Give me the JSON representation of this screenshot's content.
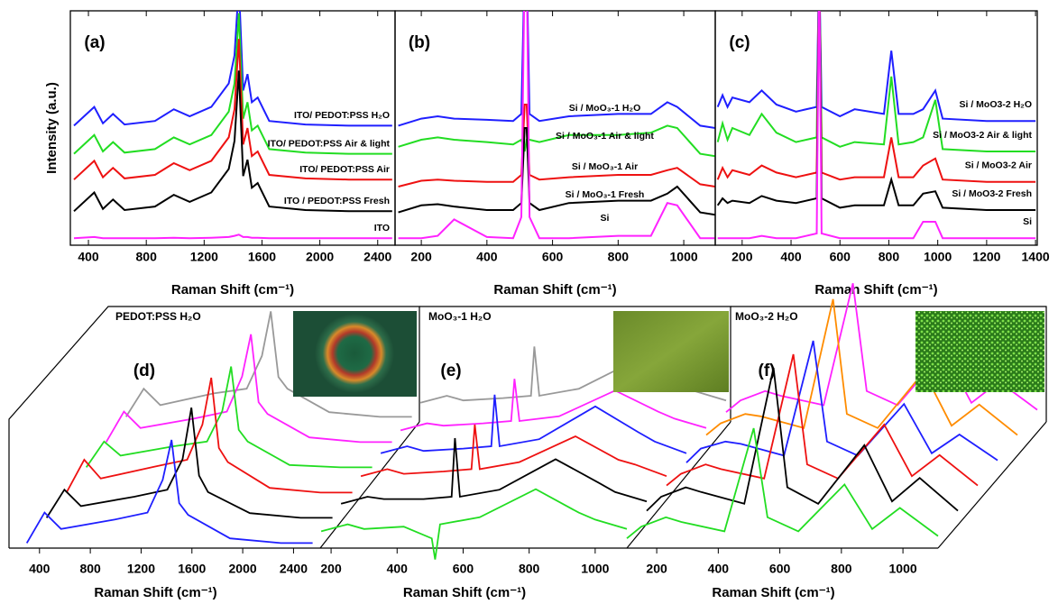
{
  "chart_data": [
    {
      "type": "line",
      "panel_label": "(a)",
      "xlabel": "Raman Shift (cm⁻¹)",
      "ylabel": "Intensity (a.u.)",
      "xlim": [
        275,
        2520
      ],
      "xticks": [
        400,
        800,
        1200,
        1600,
        2000,
        2400
      ],
      "ylim": [
        0,
        10
      ],
      "x": [
        300,
        440,
        500,
        570,
        650,
        860,
        990,
        1100,
        1250,
        1370,
        1410,
        1440,
        1470,
        1500,
        1530,
        1570,
        1650,
        1900,
        2200,
        2500
      ],
      "series": [
        {
          "name": "ITO/ PEDOT:PSS H₂O",
          "color": "#1f1fff",
          "values": [
            5.1,
            5.9,
            5.2,
            5.6,
            5.15,
            5.3,
            5.8,
            5.5,
            5.9,
            6.9,
            8.1,
            11.1,
            6.6,
            7.3,
            6.1,
            6.3,
            5.3,
            5.15,
            5.1,
            5.1
          ]
        },
        {
          "name": "ITO/ PEDOT:PSS Air & light",
          "color": "#22dd22",
          "values": [
            3.9,
            4.7,
            4.0,
            4.4,
            3.95,
            4.1,
            4.6,
            4.3,
            4.7,
            5.7,
            6.9,
            9.9,
            5.4,
            6.1,
            4.9,
            5.1,
            4.1,
            3.95,
            3.9,
            3.9
          ]
        },
        {
          "name": "ITO/ PEDOT:PSS Air",
          "color": "#ee1111",
          "values": [
            2.8,
            3.6,
            2.9,
            3.3,
            2.85,
            3.0,
            3.5,
            3.2,
            3.6,
            4.6,
            5.8,
            8.8,
            4.3,
            5.0,
            3.8,
            4.0,
            3.0,
            2.85,
            2.8,
            2.8
          ]
        },
        {
          "name": "ITO / PEDOT:PSS Fresh",
          "color": "#000000",
          "values": [
            1.45,
            2.25,
            1.55,
            1.95,
            1.5,
            1.65,
            2.15,
            1.85,
            2.25,
            3.25,
            4.45,
            7.45,
            2.95,
            3.65,
            2.45,
            2.65,
            1.65,
            1.5,
            1.45,
            1.45
          ]
        },
        {
          "name": "ITO",
          "color": "#ff22ff",
          "values": [
            0.3,
            0.35,
            0.3,
            0.3,
            0.3,
            0.3,
            0.32,
            0.3,
            0.32,
            0.35,
            0.4,
            0.45,
            0.35,
            0.35,
            0.32,
            0.32,
            0.3,
            0.3,
            0.3,
            0.3
          ]
        }
      ]
    },
    {
      "type": "line",
      "panel_label": "(b)",
      "xlabel": "Raman Shift (cm⁻¹)",
      "xlim": [
        120,
        1096
      ],
      "xticks": [
        200,
        400,
        600,
        800,
        1000
      ],
      "ylim": [
        0,
        10
      ],
      "x": [
        130,
        200,
        250,
        300,
        400,
        480,
        505,
        515,
        521,
        530,
        560,
        650,
        800,
        900,
        950,
        980,
        1050,
        1096
      ],
      "series": [
        {
          "name": "Si / MoO₃-1 H₂O",
          "color": "#1f1fff",
          "values": [
            5.1,
            5.4,
            5.5,
            5.4,
            5.35,
            5.3,
            5.6,
            12,
            12,
            5.6,
            5.3,
            5.5,
            5.6,
            5.6,
            6.1,
            5.9,
            5.1,
            5.0
          ]
        },
        {
          "name": "Si / MoO₃-1 Air & light",
          "color": "#22dd22",
          "values": [
            4.2,
            4.5,
            4.6,
            4.5,
            4.4,
            4.3,
            4.5,
            4.0,
            4.5,
            4.5,
            4.4,
            4.7,
            4.7,
            4.8,
            5.1,
            5.0,
            3.9,
            3.8
          ]
        },
        {
          "name": "Si / MoO₃-1 Air",
          "color": "#ee1111",
          "values": [
            2.5,
            2.75,
            2.8,
            2.75,
            2.7,
            2.7,
            3.0,
            6.0,
            6.0,
            3.0,
            2.8,
            2.9,
            3.0,
            3.0,
            3.2,
            3.3,
            2.6,
            2.5
          ]
        },
        {
          "name": "Si / MoO₃-1 Fresh",
          "color": "#000000",
          "values": [
            1.4,
            1.7,
            1.75,
            1.65,
            1.5,
            1.5,
            1.8,
            5.0,
            5.0,
            1.8,
            1.5,
            1.8,
            1.9,
            1.9,
            2.2,
            2.5,
            1.4,
            1.3
          ]
        },
        {
          "name": "Si",
          "color": "#ff22ff",
          "values": [
            0.3,
            0.3,
            0.4,
            1.1,
            0.35,
            0.3,
            1.2,
            12,
            12,
            1.2,
            0.3,
            0.3,
            0.4,
            0.4,
            1.8,
            1.7,
            0.3,
            0.3
          ]
        }
      ]
    },
    {
      "type": "line",
      "panel_label": "(c)",
      "xlabel": "Raman Shift (cm⁻¹)",
      "xlim": [
        90,
        1407
      ],
      "xticks": [
        200,
        400,
        600,
        800,
        1000,
        1200,
        1400
      ],
      "ylim": [
        0,
        10
      ],
      "x": [
        100,
        120,
        140,
        160,
        230,
        280,
        340,
        420,
        505,
        515,
        525,
        600,
        660,
        780,
        810,
        840,
        900,
        940,
        990,
        1020,
        1200,
        1400
      ],
      "series": [
        {
          "name": "Si / MoO3-2 H₂O",
          "color": "#1f1fff",
          "values": [
            5.9,
            6.4,
            5.9,
            6.3,
            6.1,
            6.6,
            6.0,
            5.7,
            5.9,
            12,
            5.9,
            5.5,
            5.8,
            5.6,
            8.3,
            5.6,
            5.6,
            5.8,
            6.6,
            5.4,
            5.3,
            5.3
          ]
        },
        {
          "name": "Si / MoO3-2 Air & light",
          "color": "#22dd22",
          "values": [
            4.4,
            5.2,
            4.5,
            5.0,
            4.7,
            5.6,
            4.8,
            4.4,
            4.6,
            12,
            4.6,
            4.2,
            4.4,
            4.3,
            7.2,
            4.3,
            4.4,
            4.6,
            6.2,
            4.1,
            4.0,
            4.0
          ]
        },
        {
          "name": "Si / MoO3-2 Air",
          "color": "#ee1111",
          "values": [
            2.8,
            3.3,
            2.9,
            3.2,
            3.0,
            3.4,
            3.1,
            2.9,
            3.1,
            12,
            3.1,
            2.8,
            2.9,
            2.9,
            4.6,
            2.9,
            2.9,
            3.4,
            3.7,
            2.8,
            2.7,
            2.7
          ]
        },
        {
          "name": "Si / MoO3-2 Fresh",
          "color": "#000000",
          "values": [
            1.7,
            2.0,
            1.8,
            1.9,
            1.8,
            2.1,
            1.9,
            1.8,
            2.0,
            12,
            2.0,
            1.6,
            1.7,
            1.7,
            2.8,
            1.7,
            1.7,
            2.2,
            2.3,
            1.6,
            1.5,
            1.5
          ]
        },
        {
          "name": "Si",
          "color": "#ff22ff",
          "values": [
            0.3,
            0.3,
            0.3,
            0.3,
            0.3,
            0.4,
            0.3,
            0.3,
            0.5,
            12,
            0.5,
            0.3,
            0.3,
            0.3,
            0.3,
            0.3,
            0.3,
            1.0,
            1.0,
            0.3,
            0.3,
            0.3
          ]
        }
      ]
    },
    {
      "type": "waterfall",
      "panel_label": "(d)",
      "title": "PEDOT:PSS H₂O",
      "xlabel": "Raman Shift (cm⁻¹)",
      "xlim": [
        160,
        2610
      ],
      "xticks": [
        400,
        800,
        1200,
        1600,
        2000,
        2400
      ],
      "x": [
        300,
        440,
        570,
        990,
        1250,
        1370,
        1440,
        1500,
        1570,
        1900,
        2300,
        2550
      ],
      "series": [
        {
          "color": "#1f1fff",
          "values": [
            0.1,
            1.4,
            0.7,
            1.1,
            1.4,
            2.8,
            4.5,
            1.8,
            1.3,
            0.3,
            0.1,
            0.1
          ]
        },
        {
          "color": "#000000",
          "values": [
            0.1,
            1.3,
            0.6,
            1.0,
            1.3,
            2.6,
            4.8,
            1.9,
            1.2,
            0.3,
            0.1,
            0.1
          ]
        },
        {
          "color": "#ee1111",
          "values": [
            0.1,
            1.5,
            0.7,
            1.2,
            1.5,
            3.0,
            5.0,
            2.0,
            1.4,
            0.3,
            0.1,
            0.1
          ]
        },
        {
          "color": "#22dd22",
          "values": [
            0.1,
            1.2,
            0.6,
            1.0,
            1.2,
            2.5,
            4.4,
            1.7,
            1.2,
            0.2,
            0.1,
            0.1
          ]
        },
        {
          "color": "#ff22ff",
          "values": [
            0.1,
            1.4,
            0.7,
            1.1,
            1.4,
            2.9,
            4.7,
            1.8,
            1.3,
            0.3,
            0.1,
            0.1
          ]
        },
        {
          "color": "#999999",
          "values": [
            0.1,
            1.3,
            0.6,
            1.1,
            1.3,
            2.7,
            4.6,
            1.8,
            1.3,
            0.3,
            0.1,
            0.1
          ]
        }
      ]
    },
    {
      "type": "waterfall",
      "panel_label": "(e)",
      "title": "MoO₃-1 H₂O",
      "xlabel": "Raman Shift (cm⁻¹)",
      "xlim": [
        167,
        1096
      ],
      "xticks": [
        200,
        400,
        600,
        800,
        1000
      ],
      "x": [
        170,
        250,
        300,
        420,
        505,
        515,
        530,
        650,
        820,
        950,
        1000,
        1096
      ],
      "series": [
        {
          "color": "#22dd22",
          "values": [
            0.6,
            0.9,
            0.7,
            0.8,
            0.3,
            -0.6,
            0.9,
            1.2,
            2.4,
            1.4,
            1.1,
            0.7
          ]
        },
        {
          "color": "#000000",
          "values": [
            0.7,
            1.0,
            0.9,
            0.9,
            1.0,
            3.5,
            1.0,
            1.3,
            2.6,
            1.6,
            1.2,
            0.8
          ]
        },
        {
          "color": "#ee1111",
          "values": [
            0.8,
            1.1,
            0.9,
            1.0,
            1.1,
            3.0,
            1.1,
            1.4,
            2.5,
            1.5,
            1.3,
            0.8
          ]
        },
        {
          "color": "#1f1fff",
          "values": [
            0.7,
            1.0,
            0.8,
            0.9,
            1.0,
            3.2,
            1.0,
            1.3,
            2.7,
            1.6,
            1.2,
            0.7
          ]
        },
        {
          "color": "#ff22ff",
          "values": [
            0.6,
            0.9,
            0.8,
            0.9,
            1.0,
            2.8,
            1.0,
            1.2,
            2.3,
            1.4,
            1.1,
            0.7
          ]
        },
        {
          "color": "#999999",
          "values": [
            0.7,
            1.0,
            0.8,
            0.9,
            1.0,
            3.1,
            1.0,
            1.3,
            2.5,
            1.5,
            1.2,
            0.8
          ]
        }
      ]
    },
    {
      "type": "waterfall",
      "panel_label": "(f)",
      "title": "MoO₃-2 H₂O",
      "xlabel": "Raman Shift (cm⁻¹)",
      "xlim": [
        103,
        1114
      ],
      "xticks": [
        200,
        400,
        600,
        800,
        1000
      ],
      "x": [
        103,
        150,
        230,
        280,
        420,
        515,
        560,
        660,
        810,
        900,
        990,
        1114
      ],
      "series": [
        {
          "color": "#22dd22",
          "values": [
            0.3,
            0.8,
            1.2,
            1.0,
            0.6,
            5.0,
            1.2,
            0.6,
            2.6,
            0.7,
            1.6,
            0.4
          ]
        },
        {
          "color": "#000000",
          "values": [
            0.4,
            1.0,
            1.4,
            1.2,
            0.7,
            6.5,
            1.4,
            0.7,
            3.2,
            0.8,
            1.8,
            0.4
          ]
        },
        {
          "color": "#ee1111",
          "values": [
            0.4,
            0.9,
            1.3,
            1.1,
            0.7,
            6.0,
            1.3,
            0.7,
            3.0,
            0.8,
            1.7,
            0.4
          ]
        },
        {
          "color": "#1f1fff",
          "values": [
            0.3,
            0.9,
            1.2,
            1.1,
            0.6,
            5.5,
            1.2,
            0.6,
            2.8,
            0.7,
            1.5,
            0.4
          ]
        },
        {
          "color": "#ff8c00",
          "values": [
            0.4,
            0.9,
            1.3,
            1.2,
            0.7,
            6.2,
            1.3,
            0.7,
            3.1,
            0.8,
            1.7,
            0.4
          ]
        },
        {
          "color": "#ff22ff",
          "values": [
            0.3,
            0.8,
            1.2,
            1.0,
            0.6,
            5.8,
            1.2,
            0.6,
            2.9,
            0.7,
            1.6,
            0.4
          ]
        }
      ]
    }
  ]
}
